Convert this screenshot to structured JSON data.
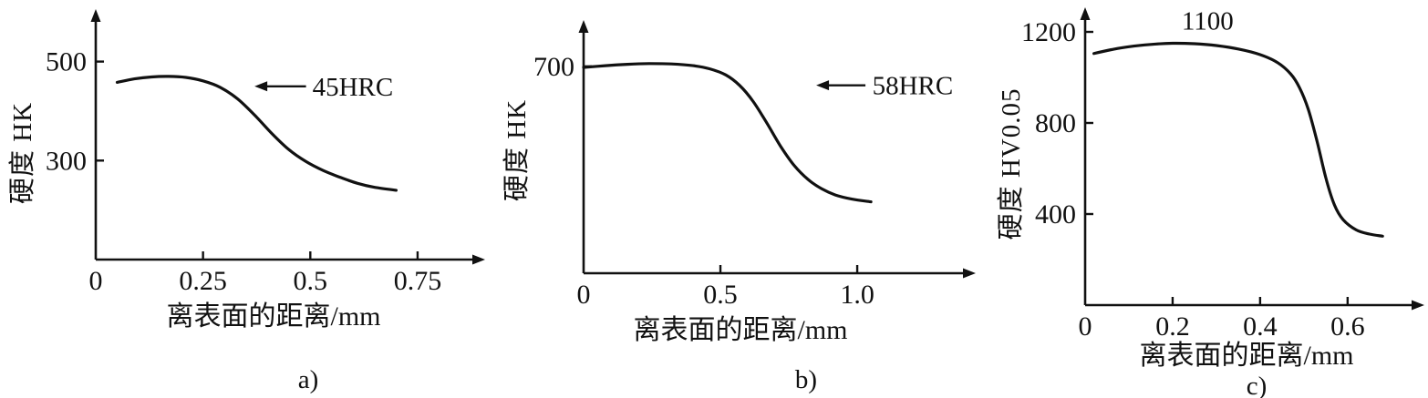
{
  "colors": {
    "ink": "#111111",
    "background": "#ffffff"
  },
  "chart_data": [
    {
      "id": "a",
      "type": "line",
      "caption": "a)",
      "xlabel": "离表面的距离/mm",
      "ylabel": "硬度  HK",
      "xlim": [
        0,
        0.85
      ],
      "ylim": [
        100,
        560
      ],
      "grid": false,
      "xticks": [
        {
          "v": 0,
          "label": "0"
        },
        {
          "v": 0.25,
          "label": "0.25"
        },
        {
          "v": 0.5,
          "label": "0.5"
        },
        {
          "v": 0.75,
          "label": "0.75"
        }
      ],
      "yticks": [
        {
          "v": 500,
          "label": "500"
        },
        {
          "v": 300,
          "label": "300"
        }
      ],
      "series": [
        {
          "name": "hardness-profile",
          "points": [
            [
              0.05,
              458
            ],
            [
              0.09,
              465
            ],
            [
              0.13,
              469
            ],
            [
              0.17,
              470
            ],
            [
              0.21,
              468
            ],
            [
              0.25,
              461
            ],
            [
              0.29,
              448
            ],
            [
              0.33,
              425
            ],
            [
              0.37,
              392
            ],
            [
              0.41,
              355
            ],
            [
              0.45,
              322
            ],
            [
              0.49,
              298
            ],
            [
              0.53,
              280
            ],
            [
              0.57,
              266
            ],
            [
              0.61,
              254
            ],
            [
              0.65,
              246
            ],
            [
              0.7,
              240
            ]
          ]
        }
      ],
      "annotations": [
        {
          "text": "45HRC",
          "anchor": "start",
          "text_pos": [
            0.505,
            450
          ],
          "arrow_tip": [
            0.37,
            450
          ],
          "arrow_tail": [
            0.49,
            450
          ]
        }
      ]
    },
    {
      "id": "b",
      "type": "line",
      "caption": "b)",
      "xlabel": "离表面的距离/mm",
      "ylabel": "硬度  HK",
      "xlim": [
        0,
        1.333
      ],
      "ylim": [
        100,
        800
      ],
      "grid": false,
      "xticks": [
        {
          "v": 0,
          "label": "0"
        },
        {
          "v": 0.5,
          "label": "0.5"
        },
        {
          "v": 1.0,
          "label": "1.0"
        }
      ],
      "yticks": [
        {
          "v": 700,
          "label": "700"
        }
      ],
      "series": [
        {
          "name": "hardness-profile",
          "points": [
            [
              0.0,
              697
            ],
            [
              0.08,
              702
            ],
            [
              0.16,
              706
            ],
            [
              0.24,
              708
            ],
            [
              0.32,
              707
            ],
            [
              0.4,
              702
            ],
            [
              0.46,
              693
            ],
            [
              0.52,
              675
            ],
            [
              0.57,
              645
            ],
            [
              0.62,
              598
            ],
            [
              0.67,
              535
            ],
            [
              0.72,
              468
            ],
            [
              0.77,
              412
            ],
            [
              0.82,
              372
            ],
            [
              0.87,
              345
            ],
            [
              0.92,
              327
            ],
            [
              0.98,
              315
            ],
            [
              1.05,
              307
            ]
          ]
        }
      ],
      "annotations": [
        {
          "text": "58HRC",
          "anchor": "start",
          "text_pos": [
            1.055,
            645
          ],
          "arrow_tip": [
            0.85,
            645
          ],
          "arrow_tail": [
            1.03,
            645
          ]
        }
      ]
    },
    {
      "id": "c",
      "type": "line",
      "caption": "c)",
      "xlabel": "离表面的距离/mm",
      "ylabel": "硬度  HV0.05",
      "xlim": [
        0,
        0.74
      ],
      "ylim": [
        0,
        1260
      ],
      "grid": false,
      "xticks": [
        {
          "v": 0,
          "label": "0"
        },
        {
          "v": 0.2,
          "label": "0.2"
        },
        {
          "v": 0.4,
          "label": "0.4"
        },
        {
          "v": 0.6,
          "label": "0.6"
        }
      ],
      "yticks": [
        {
          "v": 1200,
          "label": "1200"
        },
        {
          "v": 800,
          "label": "800"
        },
        {
          "v": 400,
          "label": "400"
        }
      ],
      "series": [
        {
          "name": "hardness-profile",
          "points": [
            [
              0.02,
              1105
            ],
            [
              0.06,
              1122
            ],
            [
              0.1,
              1135
            ],
            [
              0.15,
              1145
            ],
            [
              0.2,
              1150
            ],
            [
              0.25,
              1148
            ],
            [
              0.3,
              1140
            ],
            [
              0.35,
              1125
            ],
            [
              0.4,
              1100
            ],
            [
              0.44,
              1065
            ],
            [
              0.47,
              1015
            ],
            [
              0.49,
              955
            ],
            [
              0.51,
              860
            ],
            [
              0.53,
              720
            ],
            [
              0.55,
              560
            ],
            [
              0.57,
              440
            ],
            [
              0.59,
              375
            ],
            [
              0.62,
              330
            ],
            [
              0.65,
              312
            ],
            [
              0.68,
              303
            ]
          ]
        }
      ],
      "annotations": [
        {
          "text": "1100",
          "anchor": "middle",
          "text_pos": [
            0.28,
            1250
          ]
        }
      ]
    }
  ]
}
